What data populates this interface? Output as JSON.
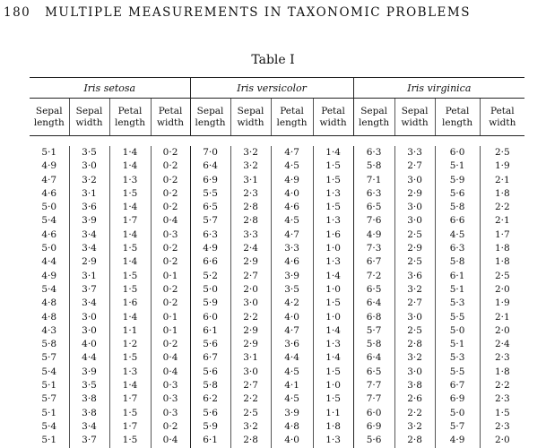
{
  "header": {
    "page_number": "180",
    "running_title": "MULTIPLE MEASUREMENTS IN TAXONOMIC PROBLEMS"
  },
  "table": {
    "title": "Table I",
    "species": [
      "Iris setosa",
      "Iris versicolor",
      "Iris virginica"
    ],
    "columns": [
      [
        "Sepal",
        "length"
      ],
      [
        "Sepal",
        "width"
      ],
      [
        "Petal",
        "length"
      ],
      [
        "Petal",
        "width"
      ]
    ],
    "rows": [
      [
        "5·1",
        "3·5",
        "1·4",
        "0·2",
        "7·0",
        "3·2",
        "4·7",
        "1·4",
        "6·3",
        "3·3",
        "6·0",
        "2·5"
      ],
      [
        "4·9",
        "3·0",
        "1·4",
        "0·2",
        "6·4",
        "3·2",
        "4·5",
        "1·5",
        "5·8",
        "2·7",
        "5·1",
        "1·9"
      ],
      [
        "4·7",
        "3·2",
        "1·3",
        "0·2",
        "6·9",
        "3·1",
        "4·9",
        "1·5",
        "7·1",
        "3·0",
        "5·9",
        "2·1"
      ],
      [
        "4·6",
        "3·1",
        "1·5",
        "0·2",
        "5·5",
        "2·3",
        "4·0",
        "1·3",
        "6·3",
        "2·9",
        "5·6",
        "1·8"
      ],
      [
        "5·0",
        "3·6",
        "1·4",
        "0·2",
        "6·5",
        "2·8",
        "4·6",
        "1·5",
        "6·5",
        "3·0",
        "5·8",
        "2·2"
      ],
      [
        "5·4",
        "3·9",
        "1·7",
        "0·4",
        "5·7",
        "2·8",
        "4·5",
        "1·3",
        "7·6",
        "3·0",
        "6·6",
        "2·1"
      ],
      [
        "4·6",
        "3·4",
        "1·4",
        "0·3",
        "6·3",
        "3·3",
        "4·7",
        "1·6",
        "4·9",
        "2·5",
        "4·5",
        "1·7"
      ],
      [
        "5·0",
        "3·4",
        "1·5",
        "0·2",
        "4·9",
        "2·4",
        "3·3",
        "1·0",
        "7·3",
        "2·9",
        "6·3",
        "1·8"
      ],
      [
        "4·4",
        "2·9",
        "1·4",
        "0·2",
        "6·6",
        "2·9",
        "4·6",
        "1·3",
        "6·7",
        "2·5",
        "5·8",
        "1·8"
      ],
      [
        "4·9",
        "3·1",
        "1·5",
        "0·1",
        "5·2",
        "2·7",
        "3·9",
        "1·4",
        "7·2",
        "3·6",
        "6·1",
        "2·5"
      ],
      [
        "5·4",
        "3·7",
        "1·5",
        "0·2",
        "5·0",
        "2·0",
        "3·5",
        "1·0",
        "6·5",
        "3·2",
        "5·1",
        "2·0"
      ],
      [
        "4·8",
        "3·4",
        "1·6",
        "0·2",
        "5·9",
        "3·0",
        "4·2",
        "1·5",
        "6·4",
        "2·7",
        "5·3",
        "1·9"
      ],
      [
        "4·8",
        "3·0",
        "1·4",
        "0·1",
        "6·0",
        "2·2",
        "4·0",
        "1·0",
        "6·8",
        "3·0",
        "5·5",
        "2·1"
      ],
      [
        "4·3",
        "3·0",
        "1·1",
        "0·1",
        "6·1",
        "2·9",
        "4·7",
        "1·4",
        "5·7",
        "2·5",
        "5·0",
        "2·0"
      ],
      [
        "5·8",
        "4·0",
        "1·2",
        "0·2",
        "5·6",
        "2·9",
        "3·6",
        "1·3",
        "5·8",
        "2·8",
        "5·1",
        "2·4"
      ],
      [
        "5·7",
        "4·4",
        "1·5",
        "0·4",
        "6·7",
        "3·1",
        "4·4",
        "1·4",
        "6·4",
        "3·2",
        "5·3",
        "2·3"
      ],
      [
        "5·4",
        "3·9",
        "1·3",
        "0·4",
        "5·6",
        "3·0",
        "4·5",
        "1·5",
        "6·5",
        "3·0",
        "5·5",
        "1·8"
      ],
      [
        "5·1",
        "3·5",
        "1·4",
        "0·3",
        "5·8",
        "2·7",
        "4·1",
        "1·0",
        "7·7",
        "3·8",
        "6·7",
        "2·2"
      ],
      [
        "5·7",
        "3·8",
        "1·7",
        "0·3",
        "6·2",
        "2·2",
        "4·5",
        "1·5",
        "7·7",
        "2·6",
        "6·9",
        "2·3"
      ],
      [
        "5·1",
        "3·8",
        "1·5",
        "0·3",
        "5·6",
        "2·5",
        "3·9",
        "1·1",
        "6·0",
        "2·2",
        "5·0",
        "1·5"
      ],
      [
        "5·4",
        "3·4",
        "1·7",
        "0·2",
        "5·9",
        "3·2",
        "4·8",
        "1·8",
        "6·9",
        "3·2",
        "5·7",
        "2·3"
      ],
      [
        "5·1",
        "3·7",
        "1·5",
        "0·4",
        "6·1",
        "2·8",
        "4·0",
        "1·3",
        "5·6",
        "2·8",
        "4·9",
        "2·0"
      ]
    ]
  }
}
